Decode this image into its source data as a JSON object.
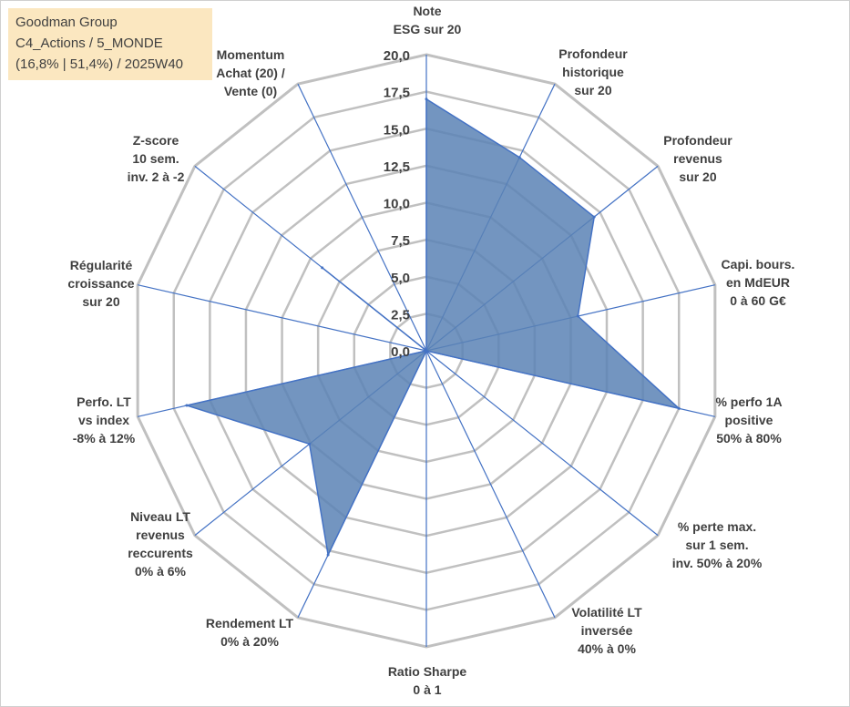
{
  "info_box": {
    "line1": "Goodman Group",
    "line2": "C4_Actions / 5_MONDE",
    "line3": "(16,8% | 51,4%) / 2025W40"
  },
  "chart_data": {
    "type": "radar",
    "title": "",
    "rmax": 20,
    "rmin": 0,
    "tick_step": 2.5,
    "tick_labels": [
      "0,0",
      "2,5",
      "5,0",
      "7,5",
      "10,0",
      "12,5",
      "15,0",
      "17,5",
      "20,0"
    ],
    "grid": true,
    "legend": "none",
    "colors": {
      "fill": "#5b82b5",
      "line": "#4472c4",
      "grid": "#c0c0c0",
      "spoke": "#4472c4"
    },
    "axes": [
      [
        "Note",
        "ESG sur 20"
      ],
      [
        "Profondeur",
        "historique",
        "sur 20"
      ],
      [
        "Profondeur",
        "revenus",
        "sur 20"
      ],
      [
        "Capi. bours.",
        "en MdEUR",
        "0 à 60 G€"
      ],
      [
        "% perfo 1A",
        "positive",
        "50% à 80%"
      ],
      [
        "% perte max.",
        "sur 1 sem.",
        "inv. 50% à 20%"
      ],
      [
        "Volatilité LT",
        "inversée",
        "40% à 0%"
      ],
      [
        "Ratio Sharpe",
        "0 à 1"
      ],
      [
        "Rendement LT",
        "0% à 20%"
      ],
      [
        "Niveau LT",
        "revenus",
        "reccurents",
        "0% à 6%"
      ],
      [
        "Perfo. LT",
        "vs index",
        "-8% à 12%"
      ],
      [
        "Régularité",
        "croissance",
        "sur 20"
      ],
      [
        "Z-score",
        "10 sem.",
        "inv. 2 à -2"
      ],
      [
        "Momentum",
        "Achat (20) /",
        "Vente (0)"
      ]
    ],
    "series": [
      {
        "values": [
          17,
          14.5,
          14.5,
          10.5,
          17.5,
          0,
          0,
          0,
          15.3,
          10.1,
          16.6,
          0,
          9.0,
          0
        ]
      }
    ]
  }
}
